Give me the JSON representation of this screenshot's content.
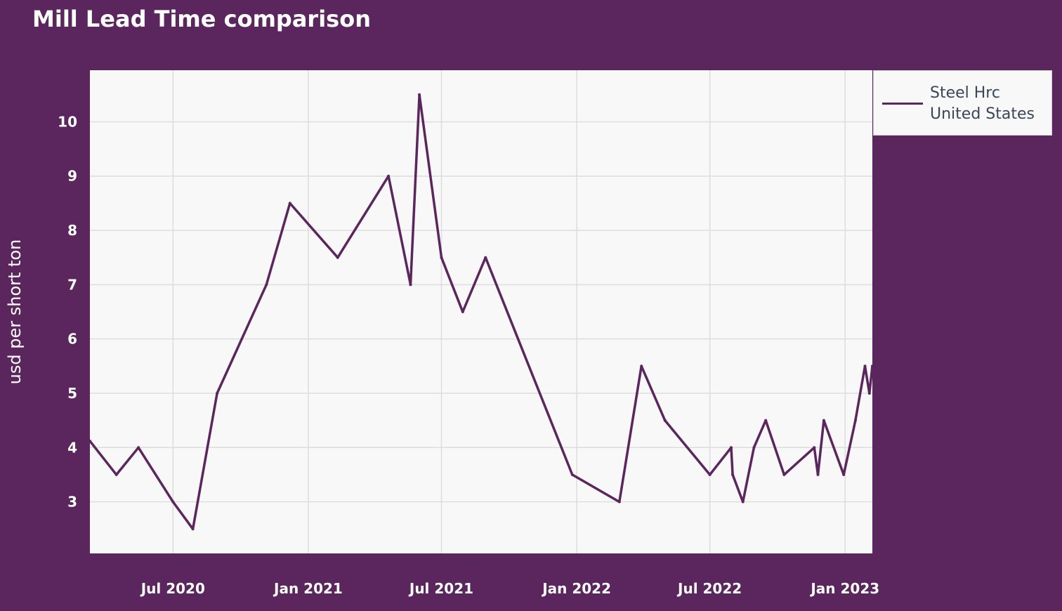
{
  "chart_data": {
    "type": "line",
    "title": "Mill Lead Time comparison",
    "xlabel": "",
    "ylabel": "usd per short ton",
    "x_axis_type": "date",
    "xlim": [
      "2020-03-10",
      "2023-02-07"
    ],
    "ylim": [
      2.05,
      10.95
    ],
    "x_ticks": [
      {
        "date": "2020-07-01",
        "label": "Jul 2020"
      },
      {
        "date": "2021-01-01",
        "label": "Jan 2021"
      },
      {
        "date": "2021-07-01",
        "label": "Jul 2021"
      },
      {
        "date": "2022-01-01",
        "label": "Jan 2022"
      },
      {
        "date": "2022-07-01",
        "label": "Jul 2022"
      },
      {
        "date": "2023-01-01",
        "label": "Jan 2023"
      }
    ],
    "y_ticks": [
      3,
      4,
      5,
      6,
      7,
      8,
      9,
      10
    ],
    "grid": true,
    "legend_position": "top-right",
    "colors": {
      "background": "#5b265d",
      "plot_background": "#f8f8f8",
      "gridline": "#dddddd",
      "line": "#5b265d"
    },
    "series": [
      {
        "name": "Steel Hrc United States",
        "color": "#5b265d",
        "points": [
          {
            "x": "2020-03-10",
            "y": 4.12
          },
          {
            "x": "2020-04-15",
            "y": 3.5
          },
          {
            "x": "2020-05-15",
            "y": 4.0
          },
          {
            "x": "2020-07-01",
            "y": 3.0
          },
          {
            "x": "2020-07-28",
            "y": 2.5
          },
          {
            "x": "2020-08-30",
            "y": 5.0
          },
          {
            "x": "2020-11-05",
            "y": 7.0
          },
          {
            "x": "2020-12-07",
            "y": 8.5
          },
          {
            "x": "2021-02-10",
            "y": 7.5
          },
          {
            "x": "2021-04-20",
            "y": 9.0
          },
          {
            "x": "2021-05-20",
            "y": 7.0
          },
          {
            "x": "2021-06-01",
            "y": 10.5
          },
          {
            "x": "2021-07-01",
            "y": 7.5
          },
          {
            "x": "2021-07-30",
            "y": 6.5
          },
          {
            "x": "2021-08-30",
            "y": 7.5
          },
          {
            "x": "2021-12-26",
            "y": 3.5
          },
          {
            "x": "2022-02-28",
            "y": 3.0
          },
          {
            "x": "2022-03-30",
            "y": 5.5
          },
          {
            "x": "2022-05-01",
            "y": 4.5
          },
          {
            "x": "2022-07-01",
            "y": 3.5
          },
          {
            "x": "2022-07-30",
            "y": 4.0
          },
          {
            "x": "2022-08-01",
            "y": 3.5
          },
          {
            "x": "2022-08-15",
            "y": 3.0
          },
          {
            "x": "2022-08-30",
            "y": 4.0
          },
          {
            "x": "2022-09-15",
            "y": 4.5
          },
          {
            "x": "2022-10-10",
            "y": 3.5
          },
          {
            "x": "2022-11-20",
            "y": 4.0
          },
          {
            "x": "2022-11-25",
            "y": 3.5
          },
          {
            "x": "2022-12-03",
            "y": 4.5
          },
          {
            "x": "2022-12-30",
            "y": 3.5
          },
          {
            "x": "2023-01-15",
            "y": 4.5
          },
          {
            "x": "2023-01-28",
            "y": 5.5
          },
          {
            "x": "2023-02-03",
            "y": 5.0
          },
          {
            "x": "2023-02-07",
            "y": 5.5
          }
        ]
      }
    ]
  },
  "legend": {
    "label": "Steel Hrc United States"
  }
}
